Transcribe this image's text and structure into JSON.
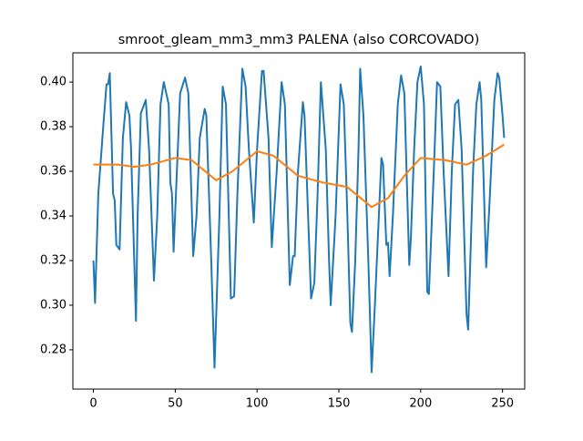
{
  "chart_data": {
    "type": "line",
    "title": "smroot_gleam_mm3_mm3 PALENA (also CORCOVADO)",
    "xlim": [
      -12.55,
      263.55
    ],
    "ylim": [
      0.2624,
      0.4131
    ],
    "xticks": [
      0,
      50,
      100,
      150,
      200,
      250
    ],
    "yticks": [
      {
        "value": 0.28,
        "label": "0.28"
      },
      {
        "value": 0.3,
        "label": "0.30"
      },
      {
        "value": 0.32,
        "label": "0.32"
      },
      {
        "value": 0.34,
        "label": "0.34"
      },
      {
        "value": 0.36,
        "label": "0.36"
      },
      {
        "value": 0.38,
        "label": "0.38"
      },
      {
        "value": 0.4,
        "label": "0.40"
      }
    ],
    "grid": false,
    "series": [
      {
        "color": "#1f77b4",
        "x": [
          0,
          1,
          3,
          6,
          8,
          9,
          10,
          12,
          13,
          14,
          16,
          18,
          20,
          22,
          23,
          26,
          27,
          29,
          32,
          34,
          37,
          39,
          41,
          43,
          46,
          47,
          48,
          49,
          51,
          53,
          56,
          58,
          61,
          63,
          65,
          68,
          69,
          72,
          74,
          77,
          79,
          81,
          84,
          86,
          88,
          91,
          93,
          95,
          98,
          100,
          103,
          104,
          107,
          109,
          112,
          115,
          117,
          120,
          122,
          123,
          125,
          128,
          129,
          133,
          135,
          137,
          139,
          142,
          144,
          145,
          148,
          151,
          153,
          155,
          157,
          158,
          160,
          162,
          163,
          165,
          168,
          170,
          172,
          176,
          177,
          179,
          180,
          181,
          183,
          186,
          188,
          190,
          193,
          194,
          196,
          198,
          200,
          202,
          204,
          205,
          208,
          210,
          212,
          214,
          217,
          219,
          221,
          223,
          225,
          228,
          229,
          232,
          234,
          236,
          237,
          240,
          242,
          245,
          247,
          248,
          250,
          251
        ],
        "values": [
          0.32,
          0.301,
          0.35,
          0.38,
          0.399,
          0.399,
          0.404,
          0.35,
          0.347,
          0.327,
          0.325,
          0.375,
          0.391,
          0.385,
          0.37,
          0.293,
          0.34,
          0.386,
          0.392,
          0.37,
          0.311,
          0.34,
          0.39,
          0.4,
          0.39,
          0.355,
          0.35,
          0.324,
          0.36,
          0.395,
          0.402,
          0.395,
          0.322,
          0.34,
          0.375,
          0.388,
          0.385,
          0.32,
          0.272,
          0.34,
          0.398,
          0.39,
          0.303,
          0.304,
          0.35,
          0.406,
          0.398,
          0.37,
          0.337,
          0.37,
          0.405,
          0.405,
          0.375,
          0.326,
          0.36,
          0.4,
          0.39,
          0.309,
          0.322,
          0.322,
          0.36,
          0.391,
          0.385,
          0.303,
          0.31,
          0.35,
          0.4,
          0.37,
          0.32,
          0.3,
          0.34,
          0.399,
          0.39,
          0.345,
          0.292,
          0.288,
          0.32,
          0.37,
          0.406,
          0.385,
          0.32,
          0.27,
          0.3,
          0.366,
          0.363,
          0.327,
          0.328,
          0.313,
          0.34,
          0.39,
          0.403,
          0.395,
          0.318,
          0.33,
          0.37,
          0.4,
          0.407,
          0.39,
          0.306,
          0.305,
          0.36,
          0.4,
          0.398,
          0.36,
          0.313,
          0.36,
          0.39,
          0.392,
          0.37,
          0.296,
          0.289,
          0.36,
          0.39,
          0.4,
          0.392,
          0.317,
          0.345,
          0.392,
          0.404,
          0.402,
          0.385,
          0.375
        ]
      },
      {
        "color": "#ff7f0e",
        "x": [
          0,
          15,
          25,
          35,
          50,
          60,
          75,
          85,
          100,
          110,
          125,
          140,
          155,
          170,
          180,
          190,
          200,
          215,
          228,
          240,
          251
        ],
        "values": [
          0.363,
          0.363,
          0.362,
          0.363,
          0.366,
          0.365,
          0.356,
          0.36,
          0.369,
          0.367,
          0.358,
          0.355,
          0.353,
          0.344,
          0.348,
          0.358,
          0.366,
          0.365,
          0.363,
          0.367,
          0.372
        ]
      }
    ]
  }
}
